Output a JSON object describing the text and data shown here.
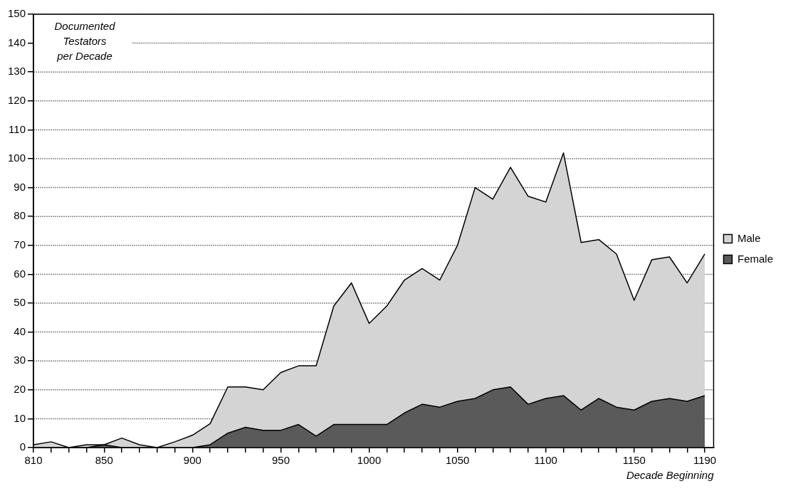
{
  "chart_data": {
    "type": "area",
    "ylabel": "Documented Testators per Decade",
    "xlabel": "Decade Beginning",
    "x": [
      810,
      820,
      830,
      840,
      850,
      860,
      870,
      880,
      890,
      900,
      910,
      920,
      930,
      940,
      950,
      960,
      970,
      980,
      990,
      1000,
      1010,
      1020,
      1030,
      1040,
      1050,
      1060,
      1070,
      1080,
      1090,
      1100,
      1110,
      1120,
      1130,
      1140,
      1150,
      1160,
      1170,
      1180,
      1190
    ],
    "series": [
      {
        "name": "Male",
        "color": "#d4d4d4",
        "values": [
          1,
          2,
          0,
          1,
          1,
          3.3,
          1,
          0,
          2,
          4.3,
          8.3,
          21,
          21,
          20,
          26,
          28.3,
          28.3,
          49,
          57,
          43,
          49,
          58,
          62,
          58,
          70,
          90,
          86,
          97,
          87,
          85,
          102,
          71,
          72,
          67,
          51,
          65,
          66,
          57,
          67
        ]
      },
      {
        "name": "Female",
        "color": "#5a5a5a",
        "values": [
          0,
          0,
          0,
          0,
          1,
          0,
          0,
          0,
          0,
          0,
          1,
          5,
          7,
          6,
          6,
          8,
          4,
          8,
          8,
          8,
          8,
          12,
          15,
          14,
          16,
          17,
          20,
          21,
          15,
          17,
          18,
          13,
          17,
          14,
          13,
          16,
          17,
          16,
          18
        ]
      }
    ],
    "xlim": [
      810,
      1195
    ],
    "xticks": [
      810,
      {
        "value": 820,
        "label": null
      },
      {
        "value": 830,
        "label": null
      },
      {
        "value": 840,
        "label": null
      },
      850,
      {
        "value": 860,
        "label": null
      },
      {
        "value": 870,
        "label": null
      },
      {
        "value": 880,
        "label": null
      },
      {
        "value": 890,
        "label": null
      },
      900,
      {
        "value": 910,
        "label": null
      },
      {
        "value": 920,
        "label": null
      },
      {
        "value": 930,
        "label": null
      },
      {
        "value": 940,
        "label": null
      },
      950,
      {
        "value": 960,
        "label": null
      },
      {
        "value": 970,
        "label": null
      },
      {
        "value": 980,
        "label": null
      },
      {
        "value": 990,
        "label": null
      },
      1000,
      {
        "value": 1010,
        "label": null
      },
      {
        "value": 1020,
        "label": null
      },
      {
        "value": 1030,
        "label": null
      },
      {
        "value": 1040,
        "label": null
      },
      1050,
      {
        "value": 1060,
        "label": null
      },
      {
        "value": 1070,
        "label": null
      },
      {
        "value": 1080,
        "label": null
      },
      {
        "value": 1090,
        "label": null
      },
      1100,
      {
        "value": 1110,
        "label": null
      },
      {
        "value": 1120,
        "label": null
      },
      {
        "value": 1130,
        "label": null
      },
      {
        "value": 1140,
        "label": null
      },
      1150,
      {
        "value": 1160,
        "label": null
      },
      {
        "value": 1170,
        "label": null
      },
      {
        "value": 1180,
        "label": null
      },
      1190
    ],
    "ylim": [
      0,
      150
    ],
    "yticks": [
      0,
      10,
      20,
      30,
      40,
      50,
      60,
      70,
      80,
      90,
      100,
      110,
      120,
      130,
      140,
      150
    ],
    "grid": "y",
    "legend": "right"
  }
}
